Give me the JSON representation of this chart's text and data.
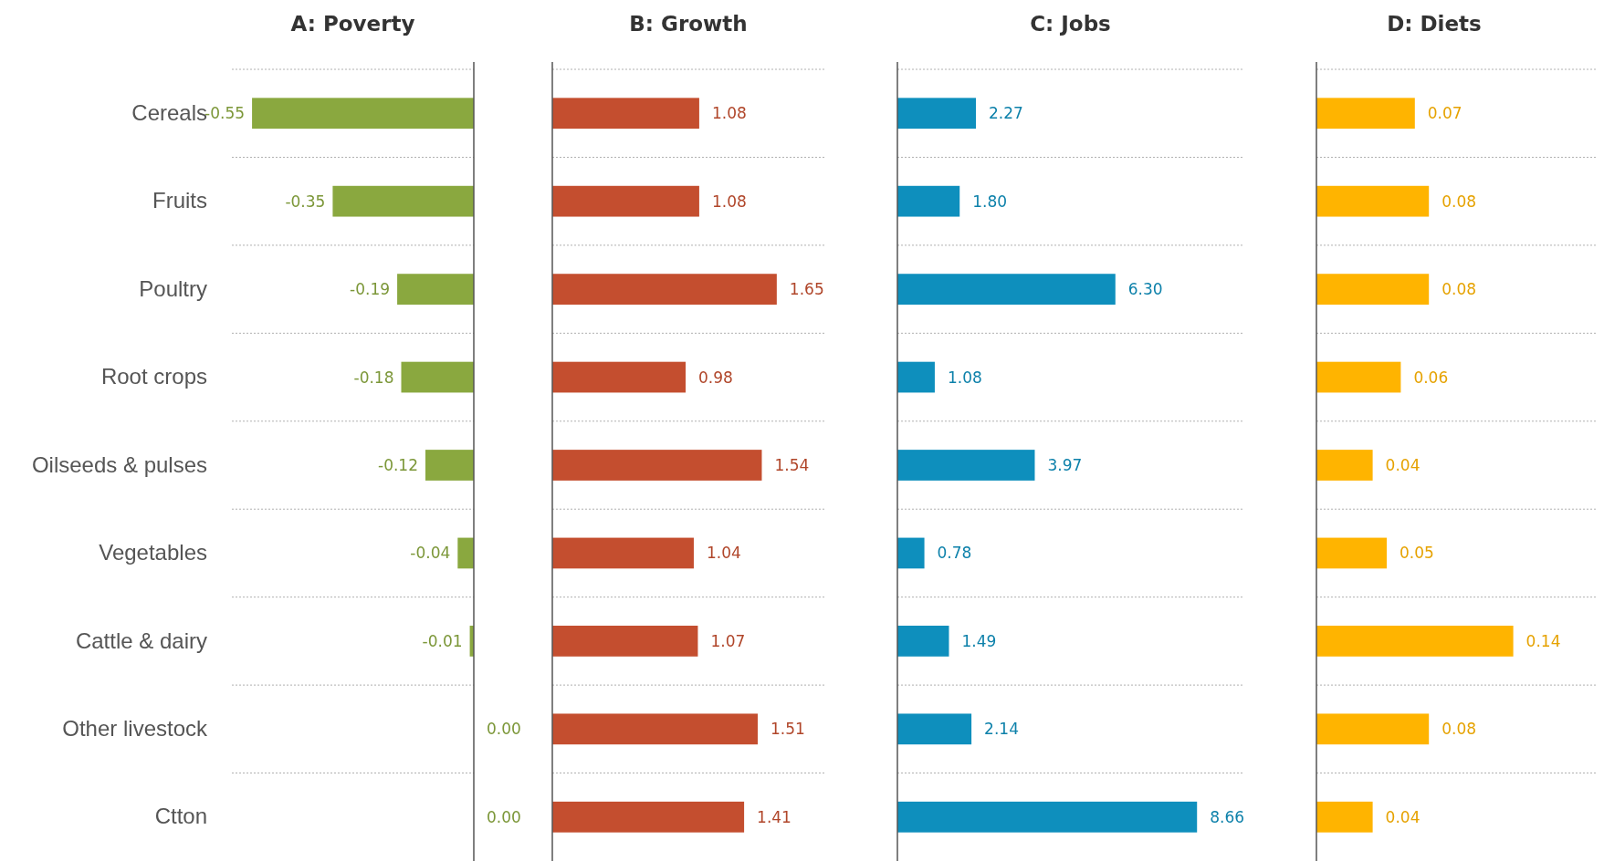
{
  "chart_data": [
    {
      "type": "bar",
      "orientation": "horizontal",
      "title": "A: Poverty",
      "categories": [
        "Cereals",
        "Fruits",
        "Poultry",
        "Root crops",
        "Oilseeds & pulses",
        "Vegetables",
        "Cattle & dairy",
        "Other livestock",
        "Ctton"
      ],
      "values": [
        -0.55,
        -0.35,
        -0.19,
        -0.18,
        -0.12,
        -0.04,
        -0.01,
        0.0,
        0.0
      ],
      "value_labels": [
        "-0.55",
        "-0.35",
        "-0.19",
        "-0.18",
        "-0.12",
        "-0.04",
        "-0.01",
        "0.00",
        "0.00"
      ],
      "color": "#8aa83f",
      "xlim": [
        -0.6,
        0
      ],
      "grid": "y",
      "tick_labels": "y"
    },
    {
      "type": "bar",
      "orientation": "horizontal",
      "title": "B: Growth",
      "categories": [
        null,
        null,
        null,
        null,
        null,
        null,
        null,
        null,
        null
      ],
      "values": [
        1.08,
        1.08,
        1.65,
        0.98,
        1.54,
        1.04,
        1.07,
        1.51,
        1.41
      ],
      "value_labels": [
        "1.08",
        "1.08",
        "1.65",
        "0.98",
        "1.54",
        "1.04",
        "1.07",
        "1.51",
        "1.41"
      ],
      "color": "#c44e2f",
      "xlim": [
        0,
        2
      ],
      "grid": "y",
      "tick_labels": false
    },
    {
      "type": "bar",
      "orientation": "horizontal",
      "title": "C: Jobs",
      "categories": [
        null,
        null,
        null,
        null,
        null,
        null,
        null,
        null,
        null
      ],
      "values": [
        2.27,
        1.8,
        6.3,
        1.08,
        3.97,
        0.78,
        1.49,
        2.14,
        8.66
      ],
      "value_labels": [
        "2.27",
        "1.80",
        "6.30",
        "1.08",
        "3.97",
        "0.78",
        "1.49",
        "2.14",
        "8.66"
      ],
      "color": "#0e8fbd",
      "xlim": [
        0,
        10
      ],
      "grid": "y",
      "tick_labels": false
    },
    {
      "type": "bar",
      "orientation": "horizontal",
      "title": "D: Diets",
      "categories": [
        null,
        null,
        null,
        null,
        null,
        null,
        null,
        null,
        null
      ],
      "values": [
        0.07,
        0.08,
        0.08,
        0.06,
        0.04,
        0.05,
        0.14,
        0.08,
        0.04
      ],
      "value_labels": [
        "0.07",
        "0.08",
        "0.08",
        "0.06",
        "0.04",
        "0.05",
        "0.14",
        "0.08",
        "0.04"
      ],
      "color": "#ffb400",
      "xlim": [
        0,
        0.2
      ],
      "grid": "y",
      "tick_labels": false
    }
  ]
}
